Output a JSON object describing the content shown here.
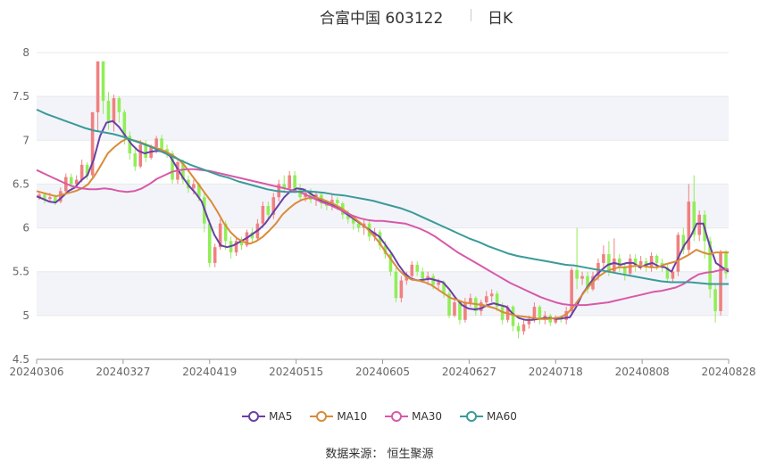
{
  "header": {
    "stock": "合富中国 603122",
    "period": "日K"
  },
  "source": "数据来源： 恒生聚源",
  "colors": {
    "up": "#f08080",
    "down": "#90ee57",
    "ma5": "#6a3fa6",
    "ma10": "#d98b3a",
    "ma30": "#d859a8",
    "ma60": "#3b9a9a",
    "band": "#f3f4f9",
    "grid": "#e8e8e8"
  },
  "chart_data": {
    "type": "candlestick",
    "ylim": [
      4.5,
      8
    ],
    "yticks": [
      "8",
      "7.5",
      "7",
      "6.5",
      "6",
      "5.5",
      "5",
      "4.5"
    ],
    "xticks": [
      "20240306",
      "20240327",
      "20240419",
      "20240515",
      "20240605",
      "20240627",
      "20240718",
      "20240808",
      "20240828"
    ],
    "grid": true,
    "legend_position": "bottom",
    "legend": [
      "MA5",
      "MA10",
      "MA30",
      "MA60"
    ],
    "candles": [
      [
        6.34,
        6.38,
        6.32,
        6.42
      ],
      [
        6.38,
        6.33,
        6.28,
        6.4
      ],
      [
        6.33,
        6.35,
        6.3,
        6.4
      ],
      [
        6.35,
        6.3,
        6.26,
        6.38
      ],
      [
        6.3,
        6.42,
        6.28,
        6.46
      ],
      [
        6.42,
        6.58,
        6.4,
        6.62
      ],
      [
        6.58,
        6.5,
        6.45,
        6.62
      ],
      [
        6.5,
        6.55,
        6.48,
        6.6
      ],
      [
        6.55,
        6.72,
        6.52,
        6.78
      ],
      [
        6.72,
        6.6,
        6.55,
        6.75
      ],
      [
        6.6,
        7.32,
        6.58,
        7.32
      ],
      [
        7.32,
        7.9,
        7.1,
        7.9
      ],
      [
        7.9,
        7.45,
        7.3,
        7.9
      ],
      [
        7.45,
        7.2,
        7.12,
        7.55
      ],
      [
        7.2,
        7.48,
        7.1,
        7.52
      ],
      [
        7.48,
        7.32,
        7.2,
        7.5
      ],
      [
        7.32,
        7.05,
        6.95,
        7.35
      ],
      [
        7.05,
        6.85,
        6.78,
        7.1
      ],
      [
        6.85,
        6.7,
        6.65,
        6.9
      ],
      [
        6.7,
        6.95,
        6.68,
        7.0
      ],
      [
        6.95,
        6.8,
        6.75,
        7.0
      ],
      [
        6.8,
        6.92,
        6.78,
        6.95
      ],
      [
        6.92,
        7.02,
        6.85,
        7.05
      ],
      [
        7.02,
        6.9,
        6.86,
        7.06
      ],
      [
        6.9,
        6.85,
        6.8,
        6.95
      ],
      [
        6.85,
        6.55,
        6.5,
        6.88
      ],
      [
        6.55,
        6.75,
        6.5,
        6.8
      ],
      [
        6.75,
        6.55,
        6.5,
        6.78
      ],
      [
        6.55,
        6.45,
        6.4,
        6.6
      ],
      [
        6.45,
        6.5,
        6.38,
        6.55
      ],
      [
        6.5,
        6.35,
        6.3,
        6.52
      ],
      [
        6.35,
        6.05,
        5.95,
        6.4
      ],
      [
        6.05,
        5.6,
        5.55,
        6.1
      ],
      [
        5.6,
        5.78,
        5.55,
        5.82
      ],
      [
        5.78,
        6.05,
        5.75,
        6.1
      ],
      [
        6.05,
        5.85,
        5.75,
        6.08
      ],
      [
        5.85,
        5.72,
        5.65,
        5.9
      ],
      [
        5.72,
        5.85,
        5.68,
        5.88
      ],
      [
        5.85,
        5.8,
        5.75,
        5.9
      ],
      [
        5.8,
        5.95,
        5.78,
        5.98
      ],
      [
        5.95,
        5.88,
        5.82,
        6.0
      ],
      [
        5.88,
        6.05,
        5.85,
        6.1
      ],
      [
        6.05,
        6.25,
        6.0,
        6.3
      ],
      [
        6.25,
        6.15,
        6.1,
        6.3
      ],
      [
        6.15,
        6.35,
        6.1,
        6.4
      ],
      [
        6.35,
        6.5,
        6.3,
        6.55
      ],
      [
        6.5,
        6.45,
        6.4,
        6.6
      ],
      [
        6.45,
        6.6,
        6.42,
        6.65
      ],
      [
        6.6,
        6.45,
        6.4,
        6.65
      ],
      [
        6.45,
        6.35,
        6.3,
        6.5
      ],
      [
        6.35,
        6.4,
        6.3,
        6.45
      ],
      [
        6.4,
        6.32,
        6.28,
        6.45
      ],
      [
        6.32,
        6.38,
        6.25,
        6.42
      ],
      [
        6.38,
        6.28,
        6.22,
        6.4
      ],
      [
        6.28,
        6.25,
        6.2,
        6.32
      ],
      [
        6.25,
        6.32,
        6.2,
        6.38
      ],
      [
        6.32,
        6.28,
        6.2,
        6.35
      ],
      [
        6.28,
        6.15,
        6.1,
        6.3
      ],
      [
        6.15,
        6.1,
        6.05,
        6.2
      ],
      [
        6.1,
        6.05,
        5.98,
        6.12
      ],
      [
        6.05,
        6.0,
        5.95,
        6.08
      ],
      [
        6.0,
        6.05,
        5.92,
        6.1
      ],
      [
        6.05,
        5.9,
        5.85,
        6.08
      ],
      [
        5.9,
        5.95,
        5.85,
        6.0
      ],
      [
        5.95,
        5.8,
        5.75,
        5.98
      ],
      [
        5.8,
        5.7,
        5.65,
        5.85
      ],
      [
        5.7,
        5.5,
        5.45,
        5.75
      ],
      [
        5.5,
        5.2,
        5.15,
        5.55
      ],
      [
        5.2,
        5.4,
        5.15,
        5.45
      ],
      [
        5.4,
        5.45,
        5.35,
        5.5
      ],
      [
        5.45,
        5.58,
        5.4,
        5.62
      ],
      [
        5.58,
        5.5,
        5.45,
        5.62
      ],
      [
        5.5,
        5.42,
        5.38,
        5.55
      ],
      [
        5.42,
        5.45,
        5.35,
        5.5
      ],
      [
        5.45,
        5.35,
        5.3,
        5.48
      ],
      [
        5.35,
        5.38,
        5.28,
        5.42
      ],
      [
        5.38,
        5.25,
        5.2,
        5.4
      ],
      [
        5.25,
        5.0,
        4.97,
        5.28
      ],
      [
        5.0,
        5.15,
        4.98,
        5.2
      ],
      [
        5.15,
        4.95,
        4.9,
        5.18
      ],
      [
        4.95,
        5.15,
        4.92,
        5.2
      ],
      [
        5.15,
        5.2,
        5.1,
        5.25
      ],
      [
        5.2,
        5.05,
        5.0,
        5.22
      ],
      [
        5.05,
        5.15,
        5.0,
        5.18
      ],
      [
        5.15,
        5.22,
        5.1,
        5.28
      ],
      [
        5.22,
        5.25,
        5.15,
        5.3
      ],
      [
        5.25,
        5.1,
        5.05,
        5.28
      ],
      [
        5.1,
        4.95,
        4.9,
        5.15
      ],
      [
        4.95,
        5.1,
        4.92,
        5.12
      ],
      [
        5.1,
        4.88,
        4.82,
        5.12
      ],
      [
        4.88,
        4.82,
        4.74,
        4.92
      ],
      [
        4.82,
        4.9,
        4.78,
        4.95
      ],
      [
        4.9,
        4.95,
        4.85,
        5.0
      ],
      [
        4.95,
        5.1,
        4.92,
        5.15
      ],
      [
        5.1,
        4.95,
        4.9,
        5.12
      ],
      [
        4.95,
        5.0,
        4.9,
        5.05
      ],
      [
        5.0,
        4.92,
        4.88,
        5.02
      ],
      [
        4.92,
        4.98,
        4.9,
        5.0
      ],
      [
        4.98,
        4.95,
        4.92,
        5.0
      ],
      [
        4.95,
        5.05,
        4.9,
        5.1
      ],
      [
        5.05,
        5.52,
        5.0,
        5.55
      ],
      [
        5.52,
        5.42,
        5.3,
        6.0
      ],
      [
        5.42,
        5.45,
        5.35,
        5.5
      ],
      [
        5.45,
        5.3,
        5.25,
        5.5
      ],
      [
        5.3,
        5.45,
        5.28,
        5.5
      ],
      [
        5.45,
        5.6,
        5.4,
        5.65
      ],
      [
        5.6,
        5.7,
        5.55,
        5.8
      ],
      [
        5.7,
        5.5,
        5.45,
        5.85
      ],
      [
        5.5,
        5.65,
        5.48,
        5.88
      ],
      [
        5.65,
        5.55,
        5.5,
        5.7
      ],
      [
        5.55,
        5.48,
        5.4,
        5.6
      ],
      [
        5.48,
        5.65,
        5.45,
        5.7
      ],
      [
        5.65,
        5.58,
        5.5,
        5.7
      ],
      [
        5.58,
        5.62,
        5.52,
        5.68
      ],
      [
        5.62,
        5.55,
        5.5,
        5.66
      ],
      [
        5.55,
        5.68,
        5.5,
        5.72
      ],
      [
        5.68,
        5.6,
        5.52,
        5.7
      ],
      [
        5.6,
        5.55,
        5.5,
        5.65
      ],
      [
        5.55,
        5.42,
        5.38,
        5.58
      ],
      [
        5.42,
        5.5,
        5.38,
        5.55
      ],
      [
        5.5,
        5.92,
        5.45,
        5.95
      ],
      [
        5.92,
        5.75,
        5.7,
        6.0
      ],
      [
        5.75,
        6.3,
        5.7,
        6.5
      ],
      [
        6.3,
        5.92,
        5.85,
        6.6
      ],
      [
        5.92,
        6.15,
        5.85,
        6.2
      ],
      [
        6.15,
        5.85,
        5.65,
        6.2
      ],
      [
        5.85,
        5.3,
        5.2,
        5.9
      ],
      [
        5.3,
        5.05,
        4.92,
        5.35
      ],
      [
        5.05,
        5.72,
        5.0,
        5.75
      ],
      [
        5.72,
        5.48,
        5.42,
        5.75
      ]
    ],
    "series": [
      {
        "name": "MA5",
        "color": "#6a3fa6",
        "values": [
          6.36,
          6.33,
          6.3,
          6.29,
          6.35,
          6.42,
          6.46,
          6.54,
          6.6,
          6.78,
          7.05,
          7.2,
          7.22,
          7.15,
          7.05,
          6.95,
          6.88,
          6.85,
          6.87,
          6.88,
          6.87,
          6.82,
          6.7,
          6.58,
          6.48,
          6.4,
          6.3,
          6.1,
          5.92,
          5.8,
          5.78,
          5.8,
          5.84,
          5.88,
          5.93,
          5.98,
          6.05,
          6.15,
          6.25,
          6.35,
          6.42,
          6.45,
          6.44,
          6.4,
          6.35,
          6.3,
          6.28,
          6.25,
          6.2,
          6.15,
          6.1,
          6.05,
          6.0,
          5.95,
          5.9,
          5.8,
          5.7,
          5.58,
          5.48,
          5.42,
          5.4,
          5.41,
          5.42,
          5.4,
          5.38,
          5.3,
          5.2,
          5.12,
          5.08,
          5.07,
          5.08,
          5.12,
          5.14,
          5.12,
          5.1,
          5.02,
          4.97,
          4.95,
          4.95,
          4.96,
          4.97,
          4.97,
          4.96,
          4.97,
          4.98,
          5.1,
          5.25,
          5.35,
          5.45,
          5.52,
          5.58,
          5.6,
          5.58,
          5.6,
          5.6,
          5.55,
          5.58,
          5.6,
          5.56,
          5.55,
          5.5,
          5.65,
          5.8,
          5.9,
          6.05,
          6.05,
          5.8,
          5.6,
          5.55,
          5.5
        ]
      },
      {
        "name": "MA10",
        "color": "#d98b3a",
        "values": [
          6.42,
          6.4,
          6.38,
          6.36,
          6.38,
          6.4,
          6.42,
          6.45,
          6.5,
          6.6,
          6.72,
          6.85,
          6.92,
          6.98,
          7.02,
          7.0,
          6.98,
          6.95,
          6.92,
          6.9,
          6.87,
          6.83,
          6.78,
          6.7,
          6.6,
          6.5,
          6.4,
          6.3,
          6.18,
          6.05,
          5.95,
          5.88,
          5.84,
          5.82,
          5.85,
          5.9,
          5.97,
          6.05,
          6.15,
          6.22,
          6.28,
          6.32,
          6.34,
          6.35,
          6.33,
          6.3,
          6.27,
          6.23,
          6.18,
          6.12,
          6.06,
          6.0,
          5.92,
          5.83,
          5.72,
          5.62,
          5.52,
          5.45,
          5.41,
          5.4,
          5.38,
          5.35,
          5.3,
          5.25,
          5.2,
          5.18,
          5.15,
          5.14,
          5.13,
          5.12,
          5.1,
          5.08,
          5.04,
          5.02,
          5.0,
          4.99,
          4.98,
          4.97,
          4.96,
          4.96,
          4.97,
          4.98,
          5.02,
          5.1,
          5.2,
          5.3,
          5.38,
          5.45,
          5.5,
          5.53,
          5.55,
          5.55,
          5.56,
          5.57,
          5.56,
          5.55,
          5.55,
          5.58,
          5.6,
          5.62,
          5.66,
          5.7,
          5.75,
          5.72,
          5.7,
          5.72,
          5.72,
          5.72
        ]
      },
      {
        "name": "MA30",
        "color": "#d859a8",
        "values": [
          6.66,
          6.62,
          6.58,
          6.54,
          6.5,
          6.47,
          6.45,
          6.44,
          6.44,
          6.45,
          6.44,
          6.42,
          6.41,
          6.42,
          6.45,
          6.5,
          6.56,
          6.6,
          6.64,
          6.66,
          6.67,
          6.67,
          6.66,
          6.65,
          6.63,
          6.61,
          6.59,
          6.57,
          6.55,
          6.53,
          6.51,
          6.49,
          6.47,
          6.45,
          6.43,
          6.41,
          6.37,
          6.33,
          6.29,
          6.26,
          6.22,
          6.18,
          6.14,
          6.11,
          6.09,
          6.08,
          6.08,
          6.07,
          6.06,
          6.05,
          6.02,
          5.99,
          5.95,
          5.9,
          5.84,
          5.78,
          5.72,
          5.67,
          5.62,
          5.57,
          5.52,
          5.47,
          5.42,
          5.37,
          5.33,
          5.29,
          5.25,
          5.21,
          5.18,
          5.15,
          5.13,
          5.12,
          5.12,
          5.12,
          5.13,
          5.14,
          5.15,
          5.17,
          5.19,
          5.21,
          5.23,
          5.25,
          5.27,
          5.28,
          5.3,
          5.32,
          5.36,
          5.42,
          5.47,
          5.49,
          5.5,
          5.52,
          5.53
        ]
      },
      {
        "name": "MA60",
        "color": "#3b9a9a",
        "values": [
          7.35,
          7.3,
          7.26,
          7.22,
          7.18,
          7.14,
          7.11,
          7.09,
          7.07,
          7.04,
          7.0,
          6.96,
          6.92,
          6.87,
          6.82,
          6.77,
          6.72,
          6.68,
          6.64,
          6.6,
          6.57,
          6.53,
          6.5,
          6.47,
          6.44,
          6.42,
          6.41,
          6.41,
          6.42,
          6.41,
          6.4,
          6.38,
          6.37,
          6.35,
          6.33,
          6.31,
          6.28,
          6.25,
          6.22,
          6.18,
          6.13,
          6.08,
          6.03,
          5.98,
          5.93,
          5.88,
          5.84,
          5.79,
          5.75,
          5.71,
          5.68,
          5.66,
          5.64,
          5.62,
          5.6,
          5.58,
          5.57,
          5.55,
          5.53,
          5.51,
          5.49,
          5.47,
          5.45,
          5.43,
          5.41,
          5.39,
          5.38,
          5.38,
          5.38,
          5.37,
          5.36,
          5.36,
          5.36
        ]
      }
    ]
  }
}
